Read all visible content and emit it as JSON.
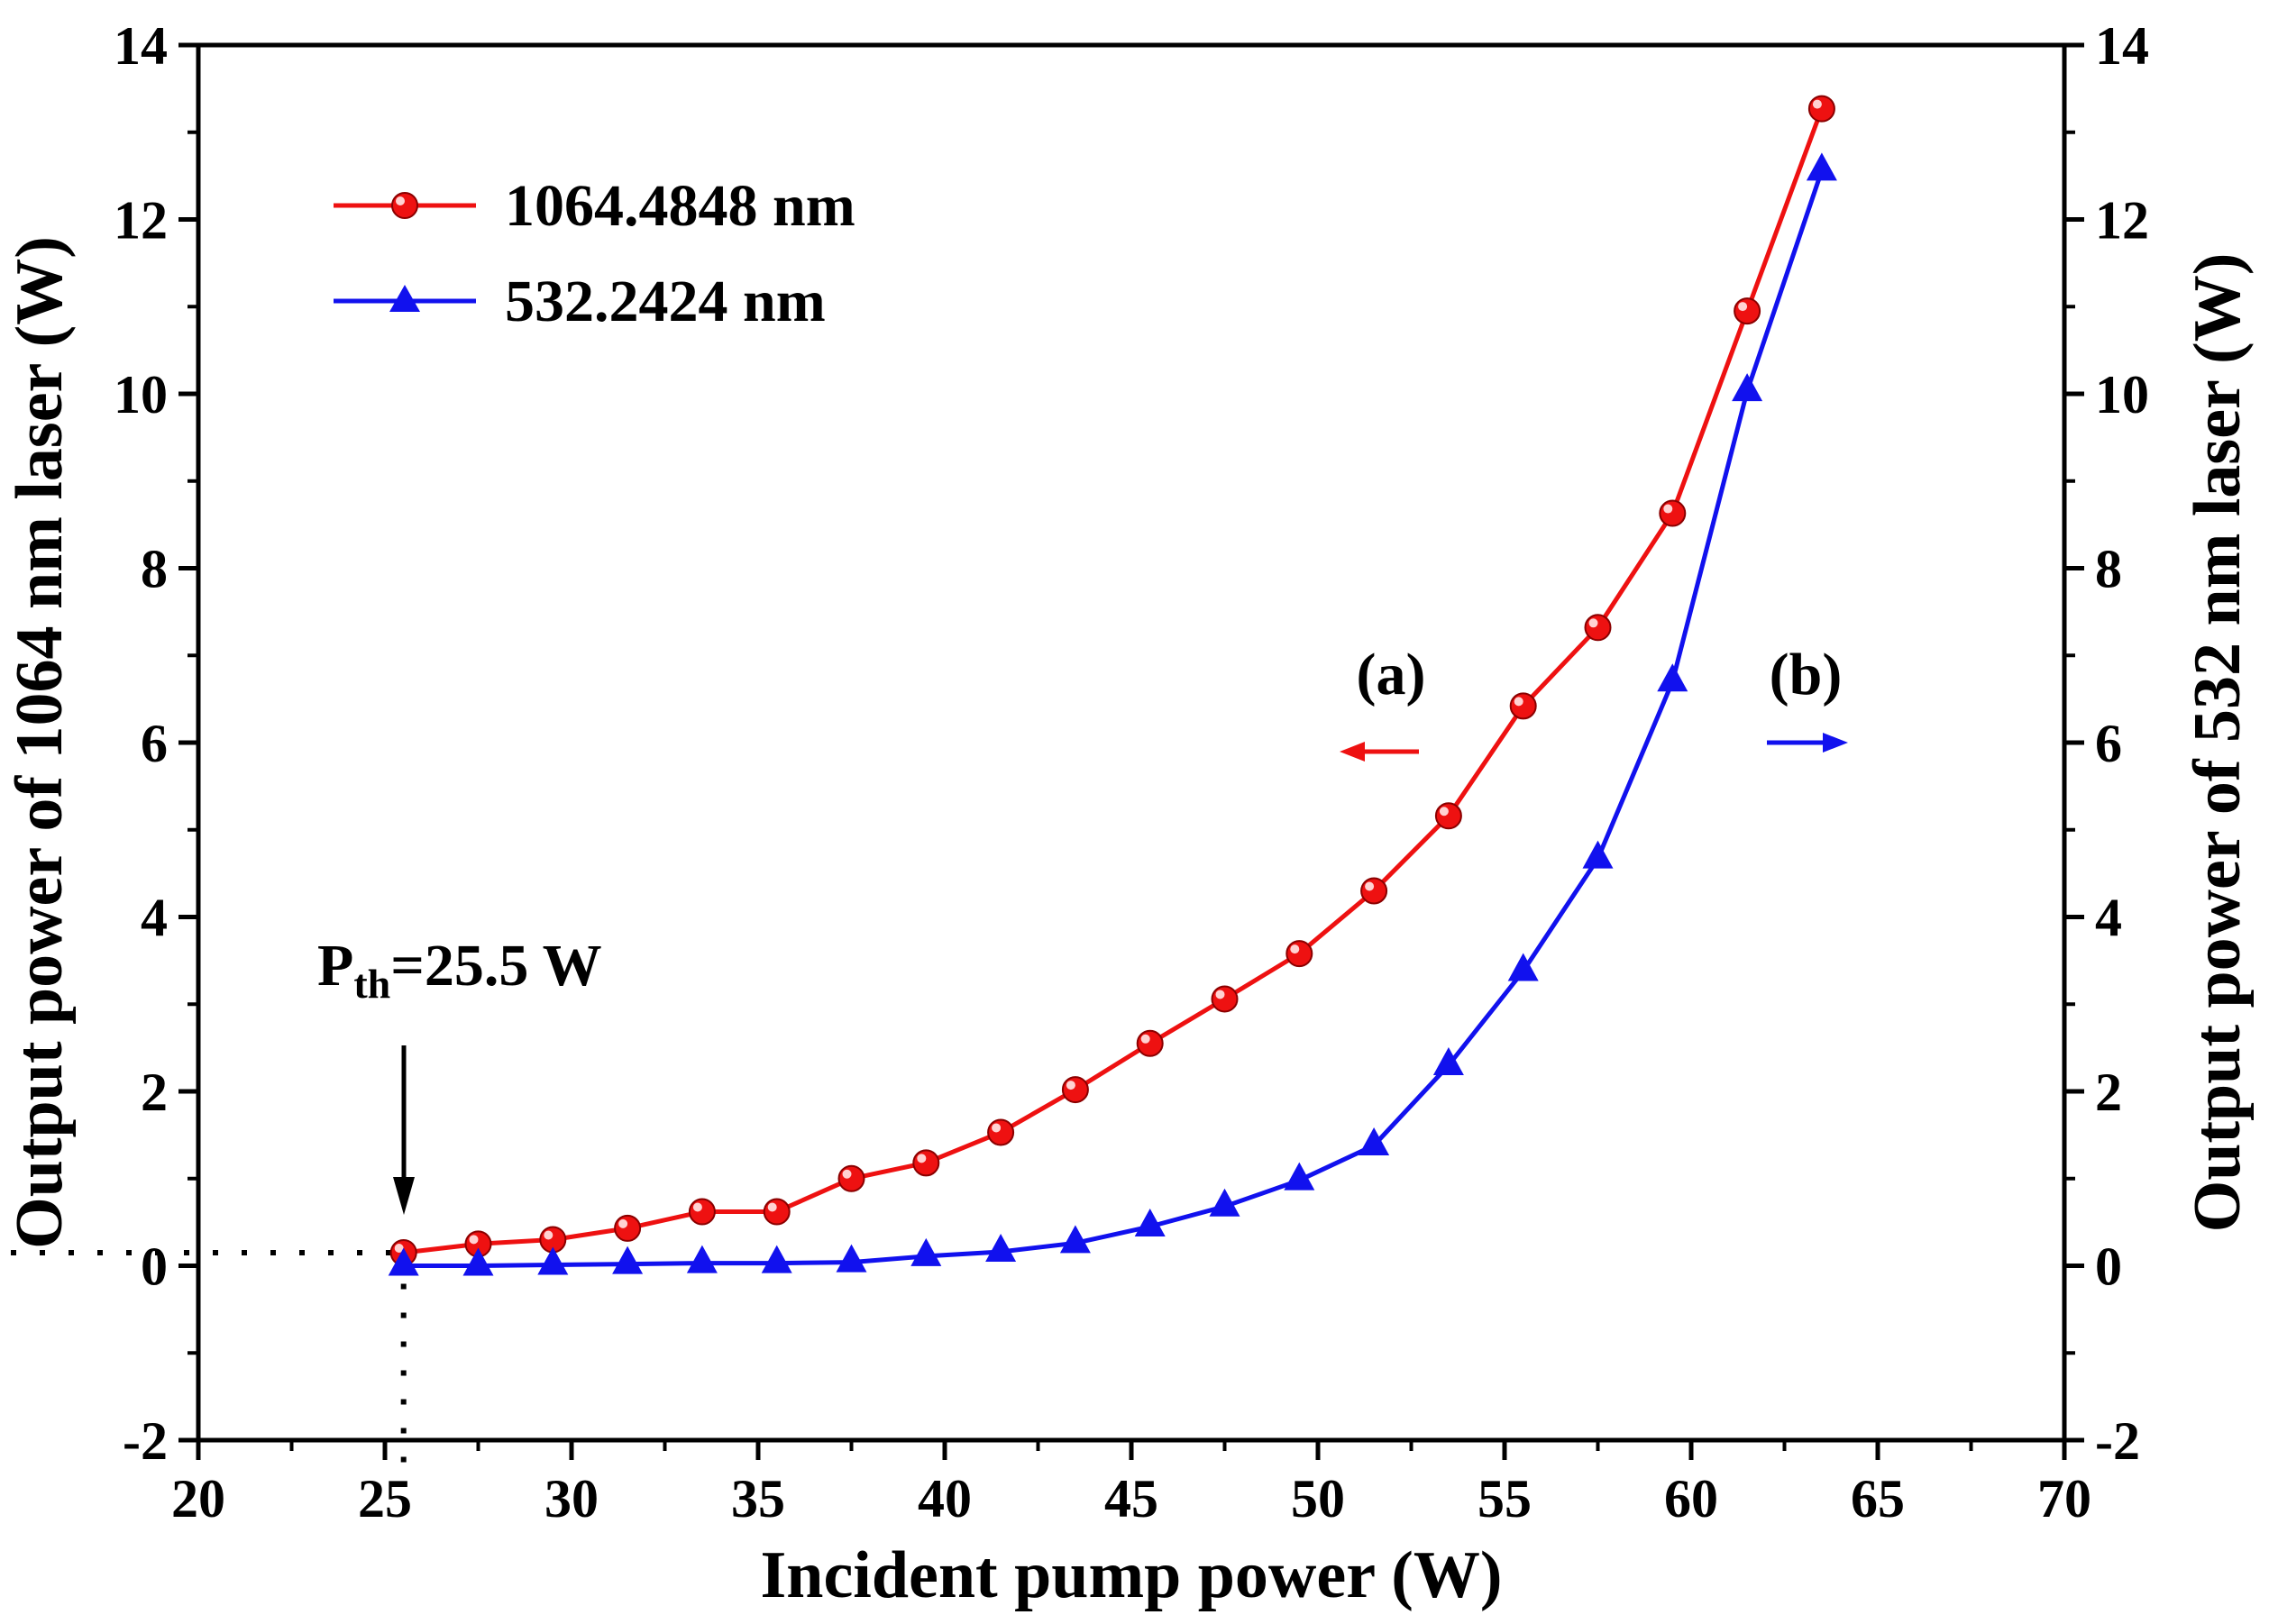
{
  "chart_data": {
    "type": "line",
    "title": "",
    "xlabel": "Incident pump power (W)",
    "ylabel_left": "Output power of 1064 nm laser (W)",
    "ylabel_right": "Output power of 532 nm laser (W)",
    "xlim": [
      20,
      70
    ],
    "ylim_left": [
      -2,
      14
    ],
    "ylim_right": [
      -2,
      14
    ],
    "x_ticks": [
      "20",
      "25",
      "30",
      "35",
      "40",
      "45",
      "50",
      "55",
      "60",
      "65",
      "70"
    ],
    "y_ticks": [
      "-2",
      "0",
      "2",
      "4",
      "6",
      "8",
      "10",
      "12",
      "14"
    ],
    "grid": false,
    "legend_position": "top-left",
    "series": [
      {
        "name": "1064.4848 nm",
        "axis": "left",
        "color": "#ee1111",
        "marker": "circle",
        "x": [
          25.5,
          27.5,
          29.5,
          31.5,
          33.5,
          35.5,
          37.5,
          39.5,
          41.5,
          43.5,
          45.5,
          47.5,
          49.5,
          51.5,
          53.5,
          55.5,
          57.5,
          59.5,
          61.5,
          63.5
        ],
        "y": [
          0.15,
          0.25,
          0.3,
          0.43,
          0.62,
          0.62,
          1.0,
          1.18,
          1.53,
          2.02,
          2.55,
          3.06,
          3.58,
          4.3,
          5.16,
          6.42,
          7.32,
          8.63,
          10.95,
          13.27
        ]
      },
      {
        "name": "532.2424 nm",
        "axis": "right",
        "color": "#1111ee",
        "marker": "triangle",
        "x": [
          25.5,
          27.5,
          29.5,
          31.5,
          33.5,
          35.5,
          37.5,
          39.5,
          41.5,
          43.5,
          45.5,
          47.5,
          49.5,
          51.5,
          53.5,
          55.5,
          57.5,
          59.5,
          61.5,
          63.5
        ],
        "y": [
          0.0,
          0.0,
          0.01,
          0.02,
          0.03,
          0.03,
          0.04,
          0.11,
          0.16,
          0.26,
          0.45,
          0.68,
          0.98,
          1.38,
          2.3,
          3.38,
          4.67,
          6.7,
          10.03,
          12.56
        ]
      }
    ],
    "annotations": {
      "threshold_base": "P",
      "threshold_sub": "th",
      "threshold_value": "=25.5 W",
      "threshold_x": 25.5,
      "threshold_y": 0.15,
      "label_a": "(a)",
      "label_b": "(b)"
    }
  }
}
